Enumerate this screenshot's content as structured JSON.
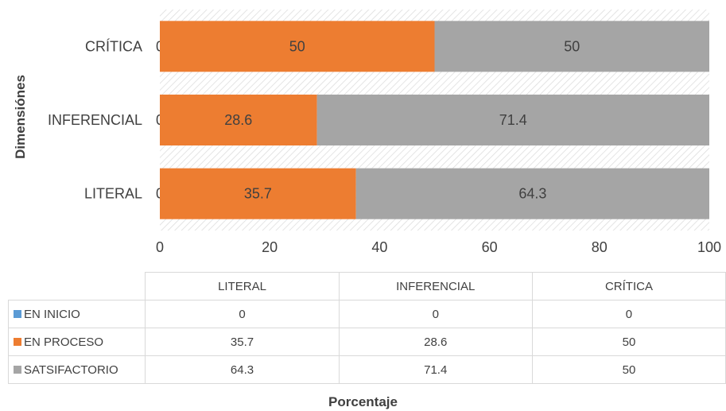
{
  "chart_data": {
    "type": "bar",
    "orientation": "horizontal",
    "stacked": true,
    "categories": [
      "LITERAL",
      "INFERENCIAL",
      "CRÍTICA"
    ],
    "series": [
      {
        "name": "EN INICIO",
        "values": [
          0,
          0,
          0
        ],
        "color": "#5b9bd5"
      },
      {
        "name": "EN PROCESO",
        "values": [
          35.7,
          28.6,
          50
        ],
        "color": "#ed7d31"
      },
      {
        "name": "SATSIFACTORIO",
        "values": [
          64.3,
          71.4,
          50
        ],
        "color": "#a5a5a5"
      }
    ],
    "xlabel": "Porcentaje",
    "ylabel": "Dimensiónes",
    "xlim": [
      0,
      100
    ],
    "xticks": [
      "0",
      "20",
      "40",
      "60",
      "80",
      "100"
    ],
    "data_labels": true,
    "data_table": true,
    "grid": false
  }
}
